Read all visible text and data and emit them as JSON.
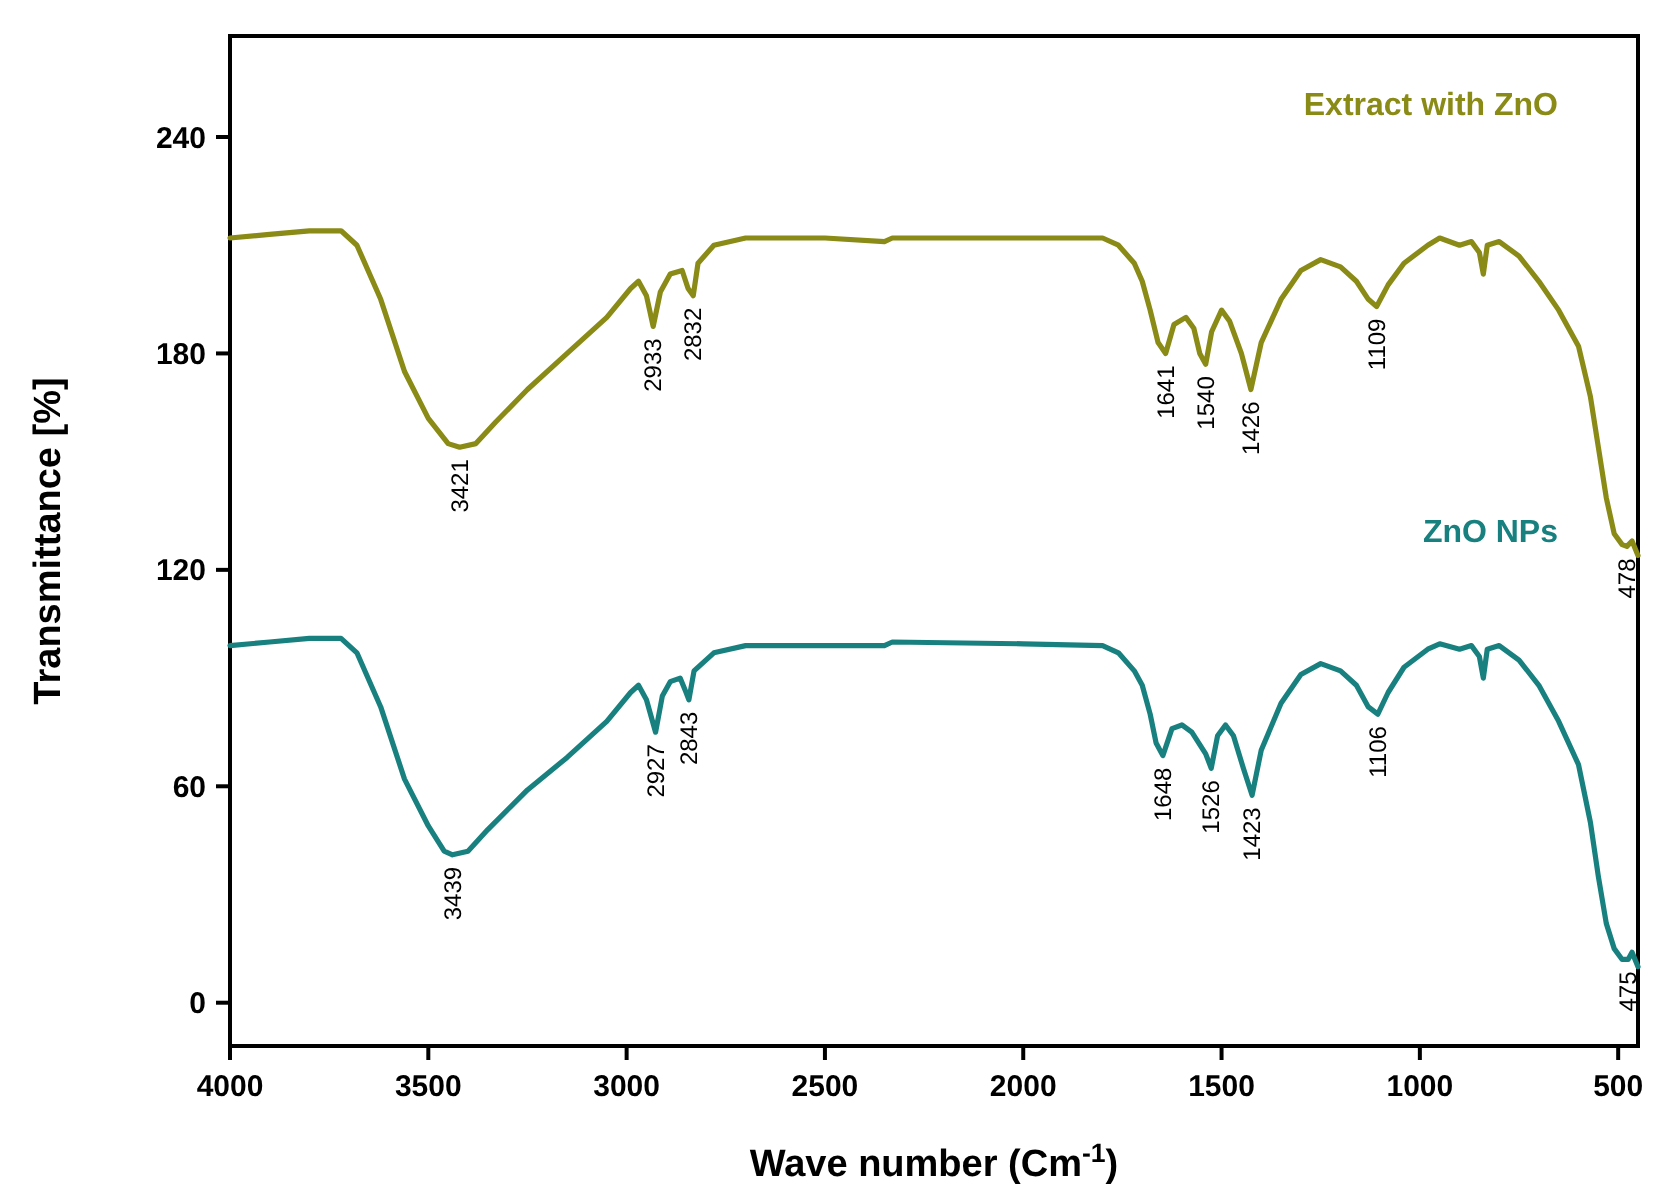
{
  "chart_data": {
    "type": "line",
    "xlabel": "Wave number (Cm$^{-1}$)",
    "ylabel": "Transmittance [%]",
    "xlim": [
      4000,
      450
    ],
    "ylim": [
      -12,
      268
    ],
    "xticks": [
      4000,
      3500,
      3000,
      2500,
      2000,
      1500,
      1000,
      500
    ],
    "yticks": [
      0,
      60,
      120,
      180,
      240
    ],
    "grid": false,
    "marker": "none",
    "line_style": "solid",
    "series": [
      {
        "name": "Extract with ZnO",
        "color": "#8a8a16",
        "x": [
          4000,
          3900,
          3800,
          3720,
          3680,
          3620,
          3560,
          3500,
          3450,
          3421,
          3380,
          3330,
          3250,
          3150,
          3050,
          2990,
          2970,
          2950,
          2933,
          2915,
          2890,
          2860,
          2845,
          2832,
          2820,
          2780,
          2700,
          2500,
          2350,
          2330,
          2000,
          1800,
          1760,
          1720,
          1700,
          1680,
          1660,
          1641,
          1620,
          1590,
          1570,
          1555,
          1540,
          1525,
          1500,
          1480,
          1450,
          1426,
          1400,
          1350,
          1300,
          1250,
          1200,
          1160,
          1130,
          1109,
          1080,
          1040,
          980,
          950,
          900,
          870,
          850,
          840,
          830,
          800,
          750,
          700,
          650,
          600,
          570,
          550,
          530,
          510,
          490,
          478,
          465,
          450
        ],
        "values": [
          212,
          213,
          214,
          214,
          210,
          195,
          175,
          162,
          155,
          154,
          155,
          161,
          170,
          180,
          190,
          198,
          200,
          196,
          187.5,
          197,
          202,
          203,
          198,
          196,
          205,
          210,
          212,
          212,
          211,
          212,
          212,
          212,
          210,
          205,
          200,
          192,
          183,
          180,
          188,
          190,
          187,
          180,
          177,
          186,
          192,
          189,
          180,
          170,
          183,
          195,
          203,
          206,
          204,
          200,
          195,
          193,
          199,
          205,
          210,
          212,
          210,
          211,
          208,
          202,
          210,
          211,
          207,
          200,
          192,
          182,
          168,
          154,
          140,
          130,
          127,
          126.5,
          128,
          124
        ]
      },
      {
        "name": "ZnO NPs",
        "color": "#198080",
        "x": [
          4000,
          3900,
          3800,
          3720,
          3680,
          3620,
          3560,
          3500,
          3460,
          3439,
          3400,
          3350,
          3250,
          3150,
          3050,
          2990,
          2970,
          2950,
          2927,
          2910,
          2890,
          2865,
          2850,
          2843,
          2830,
          2780,
          2700,
          2350,
          2330,
          2000,
          1800,
          1760,
          1720,
          1700,
          1680,
          1665,
          1648,
          1625,
          1600,
          1575,
          1540,
          1526,
          1510,
          1490,
          1470,
          1445,
          1423,
          1400,
          1350,
          1300,
          1250,
          1200,
          1160,
          1130,
          1106,
          1080,
          1040,
          980,
          950,
          900,
          870,
          850,
          840,
          830,
          800,
          750,
          700,
          650,
          600,
          570,
          550,
          530,
          510,
          490,
          475,
          465,
          450
        ],
        "values": [
          99,
          100,
          101,
          101,
          97,
          82,
          62,
          49,
          42,
          41,
          42,
          48,
          59,
          68,
          78,
          86,
          88,
          84,
          75,
          85,
          89,
          90,
          86,
          84,
          92,
          97,
          99,
          99,
          100,
          99.5,
          99,
          97,
          92,
          88,
          80,
          72,
          68.5,
          76,
          77,
          75,
          69,
          65,
          74,
          77,
          74,
          65,
          57.5,
          70,
          83,
          91,
          94,
          92,
          88,
          82,
          80,
          86,
          93,
          98,
          99.5,
          98,
          99,
          96,
          90,
          98,
          99,
          95,
          88,
          78,
          66,
          50,
          35,
          22,
          15,
          12,
          12,
          14,
          10
        ]
      }
    ],
    "annotations": [
      {
        "text": "3421",
        "x": 3421,
        "y": 154
      },
      {
        "text": "2933",
        "x": 2933,
        "y": 187.5
      },
      {
        "text": "2832",
        "x": 2832,
        "y": 196
      },
      {
        "text": "1641",
        "x": 1641,
        "y": 180
      },
      {
        "text": "1540",
        "x": 1540,
        "y": 177
      },
      {
        "text": "1426",
        "x": 1426,
        "y": 170
      },
      {
        "text": "1109",
        "x": 1109,
        "y": 193
      },
      {
        "text": "478",
        "x": 478,
        "y": 126.5
      },
      {
        "text": "3439",
        "x": 3439,
        "y": 41
      },
      {
        "text": "2927",
        "x": 2927,
        "y": 75
      },
      {
        "text": "2843",
        "x": 2843,
        "y": 84
      },
      {
        "text": "1648",
        "x": 1648,
        "y": 68.5
      },
      {
        "text": "1526",
        "x": 1526,
        "y": 65
      },
      {
        "text": "1423",
        "x": 1423,
        "y": 57.5
      },
      {
        "text": "1106",
        "x": 1106,
        "y": 80
      },
      {
        "text": "475",
        "x": 475,
        "y": 12
      }
    ]
  }
}
